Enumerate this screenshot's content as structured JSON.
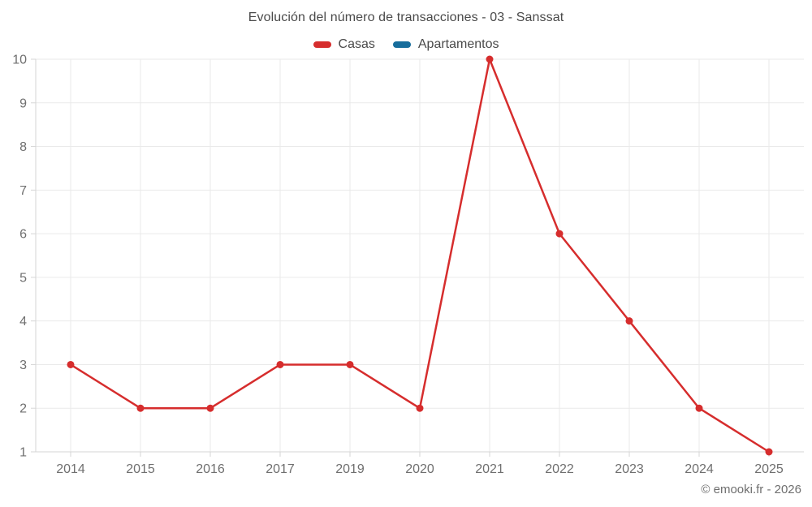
{
  "chart_data": {
    "type": "line",
    "title": "Evolución del número de transacciones - 03 - Sanssat",
    "categories": [
      "2014",
      "2015",
      "2016",
      "2017",
      "2019",
      "2020",
      "2021",
      "2022",
      "2023",
      "2024",
      "2025"
    ],
    "series": [
      {
        "name": "Casas",
        "color": "#d62d2d",
        "values": [
          3,
          2,
          2,
          3,
          3,
          2,
          10,
          6,
          4,
          2,
          1
        ]
      },
      {
        "name": "Apartamentos",
        "color": "#176d9c",
        "values": []
      }
    ],
    "xlabel": "",
    "ylabel": "",
    "ylim": [
      1,
      10
    ],
    "yticks": [
      1,
      2,
      3,
      4,
      5,
      6,
      7,
      8,
      9,
      10
    ],
    "grid": true,
    "legend_position": "top",
    "footer": "© emooki.fr - 2026",
    "colors": {
      "background": "#ffffff",
      "grid": "#eaeaea",
      "axis": "#d6d6d6",
      "tick_label": "#6f6f6f",
      "title_text": "#4a4a4a"
    }
  }
}
